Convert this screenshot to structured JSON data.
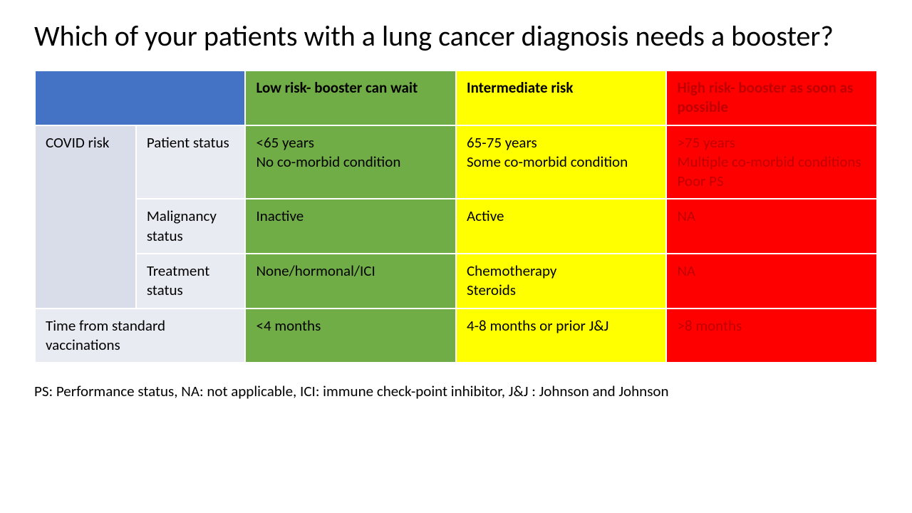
{
  "title": "Which of your patients with a lung cancer diagnosis needs a booster?",
  "colors": {
    "header_blue": "#4472c4",
    "green": "#70ad47",
    "yellow": "#ffff00",
    "red": "#ff0000",
    "red_text": "#c00000",
    "row_label_a": "#d9dce9",
    "row_label_b": "#e9ebf3",
    "border": "#ffffff",
    "background": "#ffffff",
    "text": "#000000"
  },
  "typography": {
    "title_fontsize_pt": 30,
    "cell_fontsize_pt": 16,
    "footer_fontsize_pt": 16,
    "title_weight": "400",
    "header_weight": "700"
  },
  "table": {
    "type": "table",
    "column_widths_pct": [
      12,
      13,
      25,
      25,
      25
    ],
    "headers": {
      "low": "Low risk- booster can wait",
      "mid": "Intermediate risk",
      "high": "High risk- booster as soon as possible"
    },
    "rows": [
      {
        "group": "COVID risk",
        "label": "Patient status",
        "low": "<65 years\nNo co-morbid condition",
        "mid": "65-75 years\nSome co-morbid condition",
        "high": ">75 years\nMultiple co-morbid conditions\nPoor PS"
      },
      {
        "group": "COVID risk",
        "label": "Malignancy status",
        "low": "Inactive",
        "mid": "Active",
        "high": "NA"
      },
      {
        "group": "COVID risk",
        "label": "Treatment status",
        "low": "None/hormonal/ICI",
        "mid": "Chemotherapy\nSteroids",
        "high": "NA"
      },
      {
        "group": "",
        "label": "Time from standard vaccinations",
        "low": "<4 months",
        "mid": "4-8 months or prior J&J",
        "high": ">8 months"
      }
    ]
  },
  "footer": "PS: Performance status, NA: not applicable, ICI: immune check-point inhibitor, J&J : Johnson and Johnson"
}
